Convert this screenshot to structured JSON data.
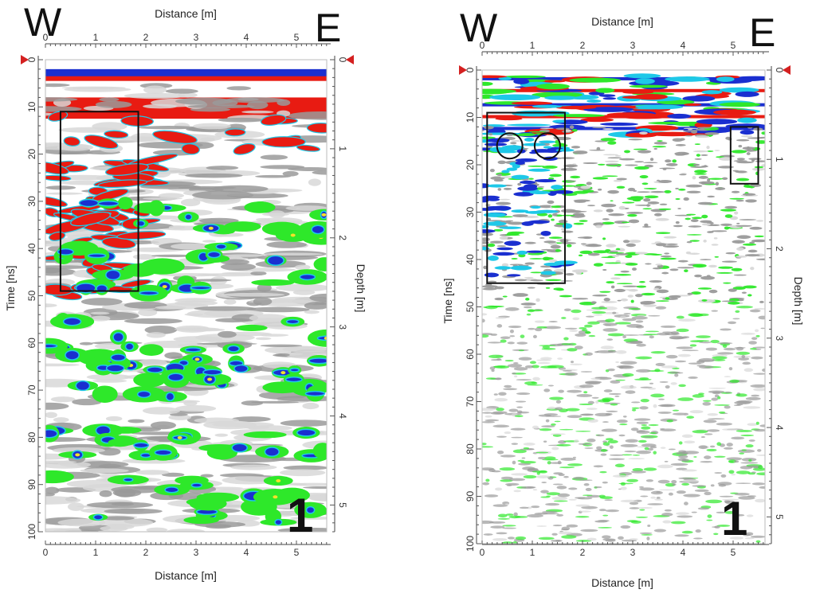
{
  "colors": {
    "red": "#e81b12",
    "blue": "#1a2fd0",
    "cyan": "#1ec8e8",
    "green": "#2ee82a",
    "yellow": "#f5e12a",
    "gray": "#9a9a9a",
    "lightgray": "#d8d8d8",
    "marker": "#d42020"
  },
  "chart_data": [
    {
      "type": "heatmap",
      "name": "radargram-left",
      "direction_left": "W",
      "direction_right": "E",
      "panel_number": "1",
      "xlabel_top": "Distance [m]",
      "xlabel_bottom": "Distance [m]",
      "ylabel_left": "Time [ns]",
      "ylabel_right": "Depth [m]",
      "x_ticks": [
        "0",
        "1",
        "2",
        "3",
        "4",
        "5"
      ],
      "time_ticks": [
        "0",
        "10",
        "20",
        "30",
        "40",
        "50",
        "60",
        "70",
        "80",
        "90",
        "100"
      ],
      "depth_ticks": [
        "0",
        "1",
        "2",
        "3",
        "4",
        "5"
      ],
      "xlim": [
        0,
        5.6
      ],
      "time_lim": [
        0,
        100
      ],
      "depth_lim": [
        0,
        5.3
      ],
      "annotations": [
        {
          "shape": "rect",
          "x": [
            0.3,
            1.85
          ],
          "time": [
            11,
            49
          ]
        }
      ]
    },
    {
      "type": "heatmap",
      "name": "radargram-right",
      "direction_left": "W",
      "direction_right": "E",
      "panel_number": "1",
      "xlabel_top": "Distance [m]",
      "xlabel_bottom": "Distance [m]",
      "ylabel_left": "Time [ns]",
      "ylabel_right": "Depth [m]",
      "x_ticks": [
        "0",
        "1",
        "2",
        "3",
        "4",
        "5"
      ],
      "time_ticks": [
        "0",
        "10",
        "20",
        "30",
        "40",
        "50",
        "60",
        "70",
        "80",
        "90",
        "100"
      ],
      "depth_ticks": [
        "0",
        "1",
        "2",
        "3",
        "4",
        "5"
      ],
      "xlim": [
        0,
        5.6
      ],
      "time_lim": [
        0,
        100
      ],
      "depth_lim": [
        0,
        5.3
      ],
      "annotations": [
        {
          "shape": "rect",
          "x": [
            0.1,
            1.65
          ],
          "time": [
            9,
            45
          ]
        },
        {
          "shape": "rect",
          "x": [
            4.95,
            5.5
          ],
          "time": [
            12,
            24
          ]
        },
        {
          "shape": "circle",
          "x": 0.55,
          "time": 16
        },
        {
          "shape": "circle",
          "x": 1.3,
          "time": 16
        }
      ]
    }
  ]
}
